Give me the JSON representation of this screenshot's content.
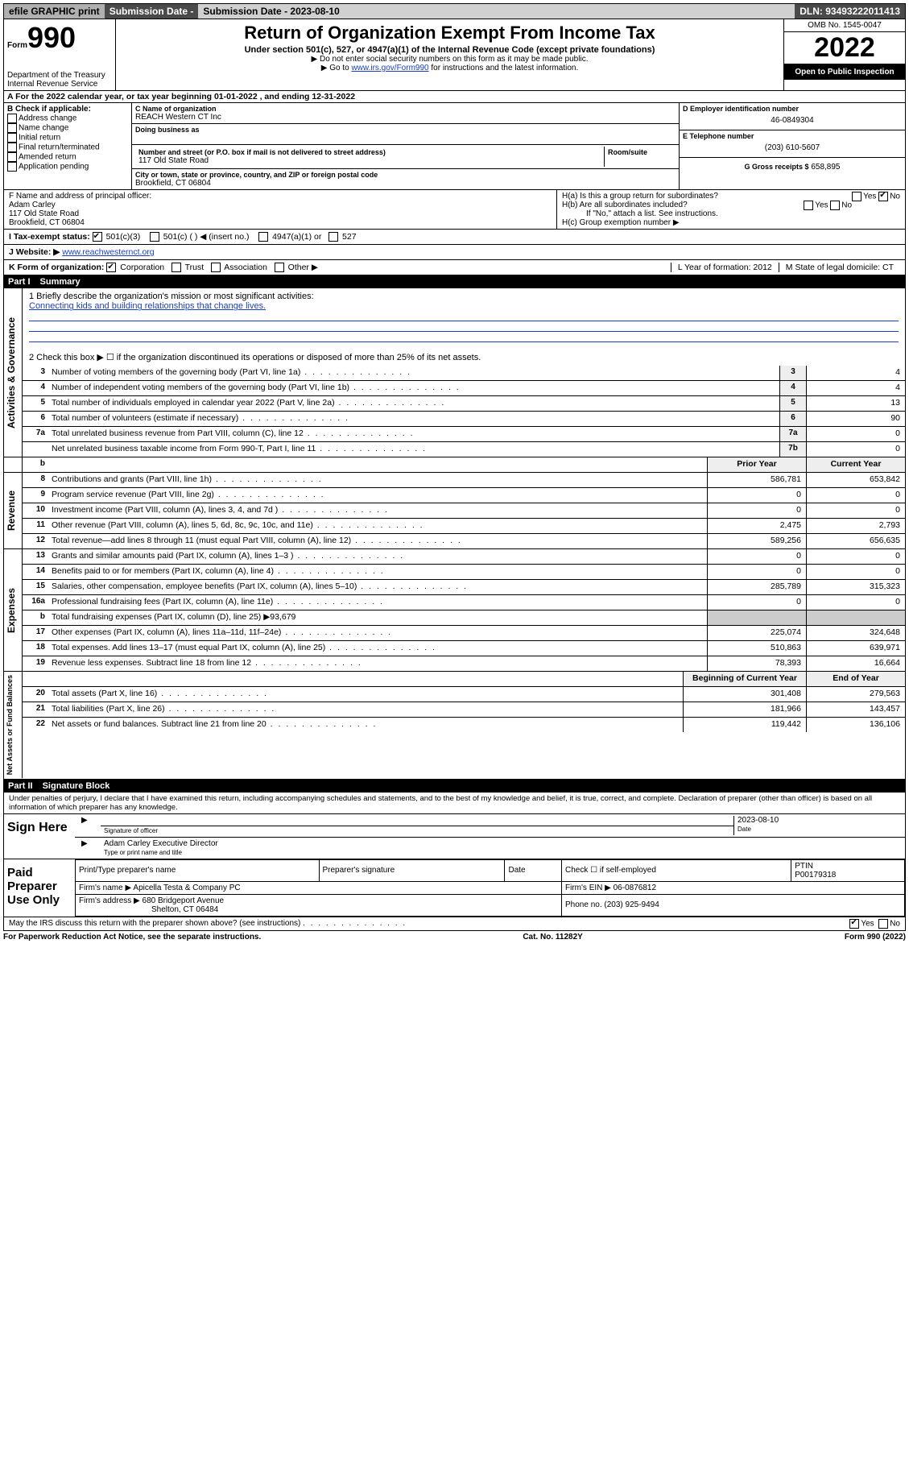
{
  "topbar": {
    "efile": "efile GRAPHIC print",
    "sub_lbl": "Submission Date - 2023-08-10",
    "dln_lbl": "DLN: 93493222011413"
  },
  "header": {
    "form_word": "Form",
    "form_num": "990",
    "dept": "Department of the Treasury Internal Revenue Service",
    "title": "Return of Organization Exempt From Income Tax",
    "sub1": "Under section 501(c), 527, or 4947(a)(1) of the Internal Revenue Code (except private foundations)",
    "note1": "▶ Do not enter social security numbers on this form as it may be made public.",
    "note2_pre": "▶ Go to ",
    "note2_link": "www.irs.gov/Form990",
    "note2_post": " for instructions and the latest information.",
    "omb": "OMB No. 1545-0047",
    "year": "2022",
    "inspect": "Open to Public Inspection"
  },
  "rowA": "A For the 2022 calendar year, or tax year beginning 01-01-2022   , and ending 12-31-2022",
  "boxB": {
    "title": "B Check if applicable:",
    "items": [
      "Address change",
      "Name change",
      "Initial return",
      "Final return/terminated",
      "Amended return",
      "Application pending"
    ]
  },
  "boxC": {
    "name_lbl": "C Name of organization",
    "name": "REACH Western CT Inc",
    "dba_lbl": "Doing business as",
    "addr_lbl": "Number and street (or P.O. box if mail is not delivered to street address)",
    "room_lbl": "Room/suite",
    "addr": "117 Old State Road",
    "city_lbl": "City or town, state or province, country, and ZIP or foreign postal code",
    "city": "Brookfield, CT  06804"
  },
  "boxD": {
    "lbl": "D Employer identification number",
    "val": "46-0849304"
  },
  "boxE": {
    "lbl": "E Telephone number",
    "val": "(203) 610-5607"
  },
  "boxG": {
    "lbl": "G Gross receipts $",
    "val": "658,895"
  },
  "boxF": {
    "lbl": "F Name and address of principal officer:",
    "name": "Adam Carley",
    "addr1": "117 Old State Road",
    "addr2": "Brookfield, CT  06804"
  },
  "boxH": {
    "a": "H(a)  Is this a group return for subordinates?",
    "b": "H(b)  Are all subordinates included?",
    "bnote": "If \"No,\" attach a list. See instructions.",
    "c": "H(c)  Group exemption number ▶"
  },
  "lineI": {
    "lbl": "I    Tax-exempt status:",
    "opts": [
      "501(c)(3)",
      "501(c) (  ) ◀ (insert no.)",
      "4947(a)(1) or",
      "527"
    ]
  },
  "lineJ": {
    "lbl": "J   Website: ▶",
    "val": "www.reachwesternct.org"
  },
  "lineK": {
    "lbl": "K Form of organization:",
    "opts": [
      "Corporation",
      "Trust",
      "Association",
      "Other ▶"
    ],
    "L": "L Year of formation: 2012",
    "M": "M State of legal domicile: CT"
  },
  "part1": {
    "num": "Part I",
    "title": "Summary"
  },
  "mission_lbl": "1   Briefly describe the organization's mission or most significant activities:",
  "mission": "Connecting kids and building relationships that change lives.",
  "line2": "2   Check this box ▶ ☐  if the organization discontinued its operations or disposed of more than 25% of its net assets.",
  "govRows": [
    {
      "n": "3",
      "d": "Number of voting members of the governing body (Part VI, line 1a)",
      "bx": "3",
      "v": "4"
    },
    {
      "n": "4",
      "d": "Number of independent voting members of the governing body (Part VI, line 1b)",
      "bx": "4",
      "v": "4"
    },
    {
      "n": "5",
      "d": "Total number of individuals employed in calendar year 2022 (Part V, line 2a)",
      "bx": "5",
      "v": "13"
    },
    {
      "n": "6",
      "d": "Total number of volunteers (estimate if necessary)",
      "bx": "6",
      "v": "90"
    },
    {
      "n": "7a",
      "d": "Total unrelated business revenue from Part VIII, column (C), line 12",
      "bx": "7a",
      "v": "0"
    },
    {
      "n": "",
      "d": "Net unrelated business taxable income from Form 990-T, Part I, line 11",
      "bx": "7b",
      "v": "0"
    }
  ],
  "colhdr": {
    "b": "b",
    "prior": "Prior Year",
    "curr": "Current Year"
  },
  "revRows": [
    {
      "n": "8",
      "d": "Contributions and grants (Part VIII, line 1h)",
      "p": "586,781",
      "c": "653,842"
    },
    {
      "n": "9",
      "d": "Program service revenue (Part VIII, line 2g)",
      "p": "0",
      "c": "0"
    },
    {
      "n": "10",
      "d": "Investment income (Part VIII, column (A), lines 3, 4, and 7d )",
      "p": "0",
      "c": "0"
    },
    {
      "n": "11",
      "d": "Other revenue (Part VIII, column (A), lines 5, 6d, 8c, 9c, 10c, and 11e)",
      "p": "2,475",
      "c": "2,793"
    },
    {
      "n": "12",
      "d": "Total revenue—add lines 8 through 11 (must equal Part VIII, column (A), line 12)",
      "p": "589,256",
      "c": "656,635"
    }
  ],
  "expRows": [
    {
      "n": "13",
      "d": "Grants and similar amounts paid (Part IX, column (A), lines 1–3 )",
      "p": "0",
      "c": "0"
    },
    {
      "n": "14",
      "d": "Benefits paid to or for members (Part IX, column (A), line 4)",
      "p": "0",
      "c": "0"
    },
    {
      "n": "15",
      "d": "Salaries, other compensation, employee benefits (Part IX, column (A), lines 5–10)",
      "p": "285,789",
      "c": "315,323"
    },
    {
      "n": "16a",
      "d": "Professional fundraising fees (Part IX, column (A), line 11e)",
      "p": "0",
      "c": "0"
    }
  ],
  "exp16b": {
    "n": "b",
    "d": "Total fundraising expenses (Part IX, column (D), line 25) ▶93,679"
  },
  "expRows2": [
    {
      "n": "17",
      "d": "Other expenses (Part IX, column (A), lines 11a–11d, 11f–24e)",
      "p": "225,074",
      "c": "324,648"
    },
    {
      "n": "18",
      "d": "Total expenses. Add lines 13–17 (must equal Part IX, column (A), line 25)",
      "p": "510,863",
      "c": "639,971"
    },
    {
      "n": "19",
      "d": "Revenue less expenses. Subtract line 18 from line 12",
      "p": "78,393",
      "c": "16,664"
    }
  ],
  "naHdr": {
    "b": "Beginning of Current Year",
    "e": "End of Year"
  },
  "naRows": [
    {
      "n": "20",
      "d": "Total assets (Part X, line 16)",
      "p": "301,408",
      "c": "279,563"
    },
    {
      "n": "21",
      "d": "Total liabilities (Part X, line 26)",
      "p": "181,966",
      "c": "143,457"
    },
    {
      "n": "22",
      "d": "Net assets or fund balances. Subtract line 21 from line 20",
      "p": "119,442",
      "c": "136,106"
    }
  ],
  "part2": {
    "num": "Part II",
    "title": "Signature Block"
  },
  "penalty": "Under penalties of perjury, I declare that I have examined this return, including accompanying schedules and statements, and to the best of my knowledge and belief, it is true, correct, and complete. Declaration of preparer (other than officer) is based on all information of which preparer has any knowledge.",
  "sign": {
    "here": "Sign Here",
    "sig_lbl": "Signature of officer",
    "date_lbl": "Date",
    "date": "2023-08-10",
    "name": "Adam Carley Executive Director",
    "name_lbl": "Type or print name and title"
  },
  "paid": {
    "lbl": "Paid Preparer Use Only",
    "h1": "Print/Type preparer's name",
    "h2": "Preparer's signature",
    "h3": "Date",
    "h4a": "Check ☐ if self-employed",
    "h4b": "PTIN",
    "ptin": "P00179318",
    "firm_lbl": "Firm's name    ▶",
    "firm": "Apicella Testa & Company PC",
    "ein_lbl": "Firm's EIN ▶",
    "ein": "06-0876812",
    "addr_lbl": "Firm's address ▶",
    "addr1": "680 Bridgeport Avenue",
    "addr2": "Shelton, CT  06484",
    "ph_lbl": "Phone no.",
    "ph": "(203) 925-9494"
  },
  "discuss": "May the IRS discuss this return with the preparer shown above? (see instructions)",
  "footer": {
    "l": "For Paperwork Reduction Act Notice, see the separate instructions.",
    "m": "Cat. No. 11282Y",
    "r": "Form 990 (2022)"
  },
  "yesno": {
    "yes": "Yes",
    "no": "No"
  }
}
